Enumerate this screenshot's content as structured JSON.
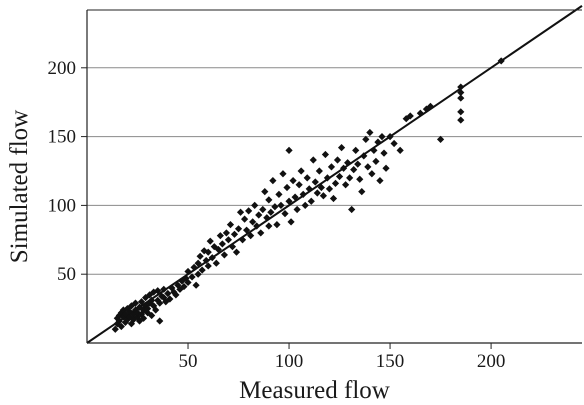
{
  "chart_data": {
    "type": "scatter",
    "title": "",
    "xlabel": "Measured flow",
    "ylabel": "Simulated flow",
    "xlim": [
      0,
      245
    ],
    "ylim": [
      0,
      242
    ],
    "xticks": [
      50,
      100,
      150,
      200
    ],
    "yticks": [
      50,
      100,
      150,
      200
    ],
    "x_tick_labels": [
      "50",
      "100",
      "150",
      "200"
    ],
    "y_tick_labels": [
      "50",
      "100",
      "150",
      "200"
    ],
    "grid": "horizontal",
    "legend": "none",
    "reference_line": {
      "type": "1:1",
      "from": [
        0,
        0
      ],
      "to": [
        245,
        245
      ]
    },
    "marker": "diamond",
    "colors": {
      "points": "#111111",
      "line": "#111111",
      "grid": "#8a8a8a",
      "axis": "#222222"
    },
    "series": [
      {
        "points": [
          [
            14,
            10
          ],
          [
            15,
            14
          ],
          [
            15,
            18
          ],
          [
            16,
            20
          ],
          [
            16,
            16
          ],
          [
            17,
            22
          ],
          [
            17,
            12
          ],
          [
            18,
            19
          ],
          [
            18,
            24
          ],
          [
            19,
            15
          ],
          [
            19,
            21
          ],
          [
            20,
            17
          ],
          [
            20,
            25
          ],
          [
            21,
            19
          ],
          [
            21,
            23
          ],
          [
            22,
            14
          ],
          [
            22,
            27
          ],
          [
            23,
            21
          ],
          [
            23,
            17
          ],
          [
            24,
            24
          ],
          [
            24,
            29
          ],
          [
            25,
            19
          ],
          [
            25,
            22
          ],
          [
            26,
            26
          ],
          [
            26,
            16
          ],
          [
            27,
            21
          ],
          [
            27,
            30
          ],
          [
            28,
            24
          ],
          [
            28,
            18
          ],
          [
            29,
            27
          ],
          [
            29,
            33
          ],
          [
            30,
            22
          ],
          [
            30,
            25
          ],
          [
            31,
            29
          ],
          [
            31,
            35
          ],
          [
            32,
            20
          ],
          [
            32,
            31
          ],
          [
            33,
            27
          ],
          [
            33,
            37
          ],
          [
            34,
            24
          ],
          [
            35,
            31
          ],
          [
            35,
            38
          ],
          [
            36,
            29
          ],
          [
            36,
            16
          ],
          [
            37,
            34
          ],
          [
            38,
            33
          ],
          [
            38,
            39
          ],
          [
            39,
            30
          ],
          [
            40,
            36
          ],
          [
            41,
            32
          ],
          [
            42,
            40
          ],
          [
            43,
            37
          ],
          [
            44,
            35
          ],
          [
            45,
            42
          ],
          [
            46,
            39
          ],
          [
            47,
            45
          ],
          [
            48,
            41
          ],
          [
            49,
            47
          ],
          [
            50,
            44
          ],
          [
            50,
            52
          ],
          [
            52,
            48
          ],
          [
            53,
            55
          ],
          [
            54,
            42
          ],
          [
            55,
            50
          ],
          [
            55,
            58
          ],
          [
            56,
            63
          ],
          [
            57,
            53
          ],
          [
            58,
            67
          ],
          [
            59,
            60
          ],
          [
            60,
            56
          ],
          [
            60,
            66
          ],
          [
            61,
            74
          ],
          [
            62,
            62
          ],
          [
            63,
            70
          ],
          [
            64,
            58
          ],
          [
            65,
            68
          ],
          [
            66,
            78
          ],
          [
            67,
            72
          ],
          [
            68,
            64
          ],
          [
            69,
            80
          ],
          [
            70,
            75
          ],
          [
            71,
            86
          ],
          [
            72,
            70
          ],
          [
            73,
            79
          ],
          [
            74,
            66
          ],
          [
            75,
            83
          ],
          [
            76,
            95
          ],
          [
            77,
            75
          ],
          [
            78,
            90
          ],
          [
            79,
            82
          ],
          [
            80,
            96
          ],
          [
            81,
            78
          ],
          [
            82,
            88
          ],
          [
            83,
            100
          ],
          [
            84,
            85
          ],
          [
            85,
            93
          ],
          [
            86,
            80
          ],
          [
            87,
            97
          ],
          [
            88,
            110
          ],
          [
            89,
            91
          ],
          [
            90,
            85
          ],
          [
            90,
            104
          ],
          [
            91,
            95
          ],
          [
            92,
            118
          ],
          [
            93,
            99
          ],
          [
            94,
            86
          ],
          [
            95,
            108
          ],
          [
            96,
            100
          ],
          [
            97,
            123
          ],
          [
            98,
            94
          ],
          [
            99,
            113
          ],
          [
            100,
            140
          ],
          [
            100,
            103
          ],
          [
            101,
            88
          ],
          [
            102,
            118
          ],
          [
            103,
            106
          ],
          [
            104,
            97
          ],
          [
            105,
            115
          ],
          [
            106,
            125
          ],
          [
            107,
            108
          ],
          [
            108,
            100
          ],
          [
            109,
            120
          ],
          [
            110,
            112
          ],
          [
            111,
            103
          ],
          [
            112,
            133
          ],
          [
            113,
            117
          ],
          [
            114,
            109
          ],
          [
            115,
            125
          ],
          [
            116,
            113
          ],
          [
            117,
            107
          ],
          [
            118,
            137
          ],
          [
            119,
            120
          ],
          [
            120,
            112
          ],
          [
            121,
            128
          ],
          [
            122,
            105
          ],
          [
            123,
            116
          ],
          [
            124,
            133
          ],
          [
            125,
            121
          ],
          [
            126,
            142
          ],
          [
            127,
            127
          ],
          [
            128,
            115
          ],
          [
            129,
            131
          ],
          [
            130,
            120
          ],
          [
            131,
            97
          ],
          [
            132,
            126
          ],
          [
            133,
            140
          ],
          [
            134,
            130
          ],
          [
            135,
            119
          ],
          [
            136,
            110
          ],
          [
            137,
            136
          ],
          [
            138,
            148
          ],
          [
            139,
            128
          ],
          [
            140,
            153
          ],
          [
            141,
            123
          ],
          [
            142,
            140
          ],
          [
            143,
            132
          ],
          [
            144,
            146
          ],
          [
            145,
            118
          ],
          [
            146,
            150
          ],
          [
            147,
            138
          ],
          [
            148,
            127
          ],
          [
            150,
            150
          ],
          [
            152,
            145
          ],
          [
            155,
            140
          ],
          [
            158,
            163
          ],
          [
            160,
            165
          ],
          [
            165,
            167
          ],
          [
            168,
            170
          ],
          [
            170,
            172
          ],
          [
            175,
            148
          ],
          [
            185,
            182
          ],
          [
            185,
            186
          ],
          [
            185,
            178
          ],
          [
            185,
            168
          ],
          [
            185,
            162
          ],
          [
            205,
            205
          ]
        ]
      }
    ]
  }
}
